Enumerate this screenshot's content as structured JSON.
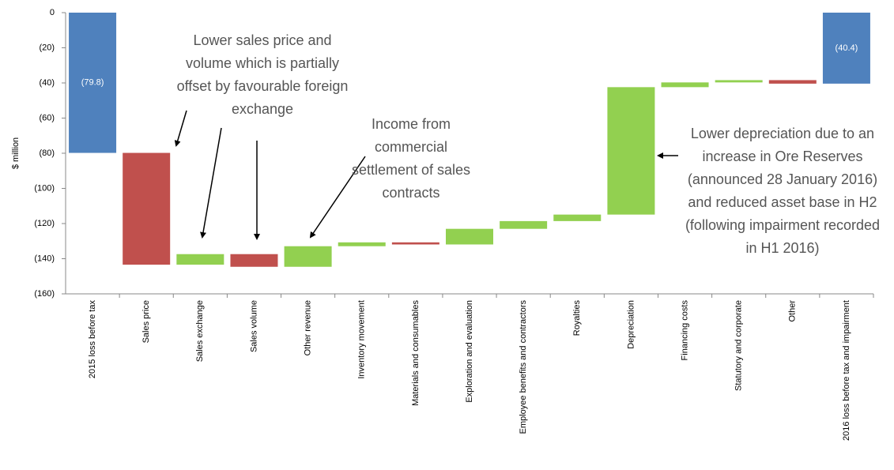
{
  "chart_data": {
    "type": "waterfall",
    "y_label": "$ million",
    "categories": [
      "2015 loss before tax",
      "Sales price",
      "Sales exchange",
      "Sales volume",
      "Other revenue",
      "Inventory movement",
      "Materials and consumables",
      "Exploration and evaluation",
      "Employee benefits and contractors",
      "Royalties",
      "Depreciation",
      "Financing costs",
      "Statutory and corporate",
      "Other",
      "2016 loss before tax and impairment"
    ],
    "measure": [
      "total",
      "relative",
      "relative",
      "relative",
      "relative",
      "relative",
      "relative",
      "relative",
      "relative",
      "relative",
      "relative",
      "relative",
      "relative",
      "relative",
      "total"
    ],
    "values": [
      -79.8,
      -63.6,
      6,
      -7.2,
      11.7,
      2.2,
      -1.2,
      8.9,
      4.4,
      3.7,
      72.5,
      2.7,
      1.3,
      -2,
      -40.4
    ],
    "value_labels": [
      "(79.8)",
      null,
      null,
      null,
      null,
      null,
      null,
      null,
      null,
      null,
      null,
      null,
      null,
      null,
      "(40.4)"
    ],
    "colors": [
      "#4f81bd",
      "#c0504d",
      "#92d050",
      "#c0504d",
      "#92d050",
      "#92d050",
      "#c0504d",
      "#92d050",
      "#92d050",
      "#92d050",
      "#92d050",
      "#92d050",
      "#92d050",
      "#c0504d",
      "#4f81bd"
    ],
    "ylim": [
      -160,
      0
    ],
    "yticks": [
      0,
      {
        "value": -20,
        "label": "(20)"
      },
      {
        "value": -40,
        "label": "(40)"
      },
      {
        "value": -60,
        "label": "(60)"
      },
      {
        "value": -80,
        "label": "(80)"
      },
      {
        "value": -100,
        "label": "(100)"
      },
      {
        "value": -120,
        "label": "(120)"
      },
      {
        "value": -140,
        "label": "(140)"
      },
      {
        "value": -160,
        "label": "(160)"
      }
    ],
    "annotations": [
      {
        "lines": [
          "Lower sales price and",
          "volume which is partially",
          "offset by favourable foreign",
          "exchange"
        ]
      },
      {
        "lines": [
          "Income from",
          "commercial",
          "settlement of sales",
          "contracts"
        ]
      },
      {
        "lines": [
          "Lower depreciation due to an",
          "increase in Ore Reserves",
          "(announced 28 January 2016)",
          "and reduced asset base in H2",
          "(following impairment recorded",
          "in H1 2016)"
        ]
      }
    ]
  }
}
